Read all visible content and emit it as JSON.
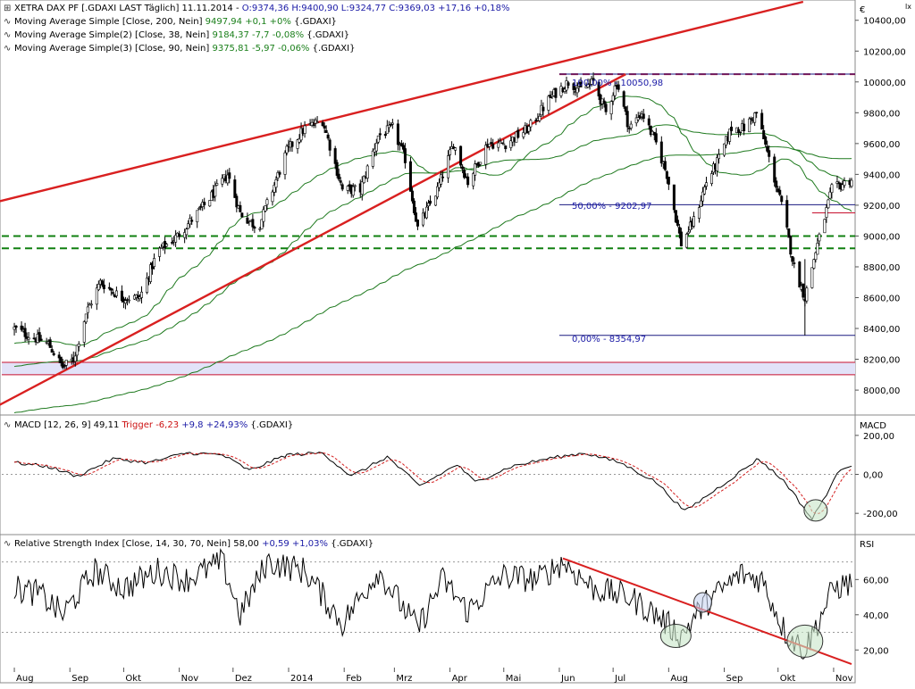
{
  "header": {
    "main_title": "XETRA DAX PF [.GDAXI LAST Täglich] 11.11.2014 -",
    "ohlc": "O:9374,36 H:9400,90 L:9324,77 C:9369,03 +17,16 +0,18%",
    "ma200_label": "Moving Average Simple [Close, 200, Nein]",
    "ma200_value": "9497,94 +0,1 +0%",
    "ma200_sym": "{.GDAXI}",
    "ma38_label": "Moving Average Simple(2) [Close, 38, Nein]",
    "ma38_value": "9184,37 -7,7 -0,08%",
    "ma38_sym": "{.GDAXI}",
    "ma90_label": "Moving Average Simple(3) [Close, 90, Nein]",
    "ma90_value": "9375,81 -5,97 -0,06%",
    "ma90_sym": "{.GDAXI}",
    "currency": "€",
    "corner": "lx"
  },
  "macd_header": {
    "label": "MACD [12, 26, 9]",
    "value": "49,11",
    "trigger_label": "Trigger",
    "trigger_value": "-6,23",
    "change": "+9,8 +24,93%",
    "sym": "{.GDAXI}",
    "axis_title": "MACD"
  },
  "rsi_header": {
    "label": "Relative Strength Index [Close, 14, 30, 70, Nein]",
    "value": "58,00",
    "change": "+0,59 +1,03%",
    "sym": "{.GDAXI}",
    "axis_title": "RSI"
  },
  "fib_labels": {
    "f100": "100,00% - 10050,98",
    "f50": "50,00% - 9202,97",
    "f0": "0,00% - 8354,97"
  },
  "x_axis_labels": [
    "Aug",
    "Sep",
    "Okt",
    "Nov",
    "Dez",
    "2014",
    "Feb",
    "Mrz",
    "Apr",
    "Mai",
    "Jun",
    "Jul",
    "Aug",
    "Sep",
    "Okt",
    "Nov"
  ],
  "price_ticks": [
    "10400,00",
    "10200,00",
    "10000,00",
    "9800,00",
    "9600,00",
    "9400,00",
    "9200,00",
    "9000,00",
    "8800,00",
    "8600,00",
    "8400,00",
    "8200,00",
    "8000,00"
  ],
  "macd_ticks": [
    "200,00",
    "0,00",
    "-200,00"
  ],
  "rsi_ticks": [
    "60,00",
    "40,00",
    "20,00"
  ],
  "colors": {
    "trend": "#d92020",
    "ma": "#1f7a1f",
    "support": "#108010",
    "fib": "#1a1a80",
    "resistance": "#c8102e",
    "band_fill": "#e2e2f8",
    "circle_green": "#c8e6c8",
    "circle_blue": "#c8d4f0"
  },
  "chart_data": [
    {
      "type": "candlestick",
      "title": "XETRA DAX PF [.GDAXI LAST Täglich]",
      "ylabel": "€",
      "ylim": [
        7850,
        10520
      ],
      "x_range": [
        "2013-08",
        "2014-11-11"
      ],
      "last": {
        "date": "11.11.2014",
        "open": 9374.36,
        "high": 9400.9,
        "low": 9324.77,
        "close": 9369.03
      },
      "close_anchor_points": [
        [
          "2013-08-01",
          8400
        ],
        [
          "2013-08-10",
          8350
        ],
        [
          "2013-08-20",
          8300
        ],
        [
          "2013-08-28",
          8150
        ],
        [
          "2013-09-03",
          8200
        ],
        [
          "2013-09-10",
          8500
        ],
        [
          "2013-09-18",
          8700
        ],
        [
          "2013-09-30",
          8600
        ],
        [
          "2013-10-10",
          8600
        ],
        [
          "2013-10-20",
          8900
        ],
        [
          "2013-10-31",
          9000
        ],
        [
          "2013-11-15",
          9200
        ],
        [
          "2013-11-28",
          9400
        ],
        [
          "2013-12-05",
          9150
        ],
        [
          "2013-12-15",
          9050
        ],
        [
          "2013-12-31",
          9550
        ],
        [
          "2014-01-10",
          9700
        ],
        [
          "2014-01-20",
          9750
        ],
        [
          "2014-01-31",
          9300
        ],
        [
          "2014-02-10",
          9300
        ],
        [
          "2014-02-20",
          9650
        ],
        [
          "2014-02-28",
          9700
        ],
        [
          "2014-03-07",
          9500
        ],
        [
          "2014-03-14",
          9050
        ],
        [
          "2014-03-25",
          9300
        ],
        [
          "2014-04-03",
          9600
        ],
        [
          "2014-04-11",
          9350
        ],
        [
          "2014-04-22",
          9600
        ],
        [
          "2014-05-02",
          9600
        ],
        [
          "2014-05-15",
          9700
        ],
        [
          "2014-05-27",
          9900
        ],
        [
          "2014-06-06",
          10000
        ],
        [
          "2014-06-13",
          9950
        ],
        [
          "2014-06-20",
          10000
        ],
        [
          "2014-06-27",
          9800
        ],
        [
          "2014-07-03",
          10000
        ],
        [
          "2014-07-10",
          9700
        ],
        [
          "2014-07-17",
          9800
        ],
        [
          "2014-07-25",
          9600
        ],
        [
          "2014-07-31",
          9400
        ],
        [
          "2014-08-08",
          8950
        ],
        [
          "2014-08-15",
          9100
        ],
        [
          "2014-08-22",
          9350
        ],
        [
          "2014-08-29",
          9500
        ],
        [
          "2014-09-05",
          9700
        ],
        [
          "2014-09-12",
          9700
        ],
        [
          "2014-09-19",
          9800
        ],
        [
          "2014-09-26",
          9500
        ],
        [
          "2014-10-03",
          9200
        ],
        [
          "2014-10-10",
          8800
        ],
        [
          "2014-10-16",
          8600
        ],
        [
          "2014-10-22",
          8900
        ],
        [
          "2014-10-31",
          9300
        ],
        [
          "2014-11-11",
          9369
        ]
      ],
      "moving_averages": [
        {
          "name": "Moving Average Simple [Close, 200, Nein]",
          "last": 9497.94
        },
        {
          "name": "Moving Average Simple(2) [Close, 38, Nein]",
          "last": 9184.37
        },
        {
          "name": "Moving Average Simple(3) [Close, 90, Nein]",
          "last": 9375.81
        }
      ],
      "fibonacci": [
        {
          "level": "100,00%",
          "value": 10050.98
        },
        {
          "level": "50,00%",
          "value": 9202.97
        },
        {
          "level": "0,00%",
          "value": 8354.97
        }
      ],
      "horizontal_lines": [
        9000,
        8920,
        10050,
        9150,
        8100,
        8180
      ],
      "trend_lines": [
        {
          "from": [
            "2013-07-15",
            7850
          ],
          "to": [
            "2014-07-08",
            10050
          ]
        },
        {
          "from": [
            "2013-07-15",
            9200
          ],
          "to": [
            "2014-10-15",
            10520
          ]
        }
      ]
    },
    {
      "type": "line",
      "title": "MACD [12, 26, 9]",
      "ylim": [
        -300,
        300
      ],
      "series": [
        {
          "name": "MACD",
          "last": 49.11
        },
        {
          "name": "Trigger",
          "last": -6.23
        }
      ],
      "macd_anchor_points": [
        [
          "2013-08-01",
          60
        ],
        [
          "2013-08-20",
          40
        ],
        [
          "2013-09-05",
          -10
        ],
        [
          "2013-09-25",
          80
        ],
        [
          "2013-10-15",
          60
        ],
        [
          "2013-11-05",
          110
        ],
        [
          "2013-11-25",
          100
        ],
        [
          "2013-12-10",
          20
        ],
        [
          "2013-12-31",
          100
        ],
        [
          "2014-01-20",
          110
        ],
        [
          "2014-02-05",
          -10
        ],
        [
          "2014-02-25",
          90
        ],
        [
          "2014-03-15",
          -60
        ],
        [
          "2014-04-05",
          50
        ],
        [
          "2014-04-15",
          -40
        ],
        [
          "2014-05-05",
          40
        ],
        [
          "2014-05-25",
          80
        ],
        [
          "2014-06-15",
          110
        ],
        [
          "2014-07-05",
          60
        ],
        [
          "2014-07-25",
          -40
        ],
        [
          "2014-08-10",
          -190
        ],
        [
          "2014-08-30",
          -60
        ],
        [
          "2014-09-20",
          80
        ],
        [
          "2014-10-05",
          -40
        ],
        [
          "2014-10-20",
          -230
        ],
        [
          "2014-11-05",
          30
        ],
        [
          "2014-11-11",
          49
        ]
      ]
    },
    {
      "type": "line",
      "title": "Relative Strength Index [Close, 14, 30, 70, Nein]",
      "ylim": [
        10,
        85
      ],
      "series": [
        {
          "name": "RSI",
          "last": 58.0
        }
      ],
      "rsi_anchor_points": [
        [
          "2013-08-01",
          55
        ],
        [
          "2013-08-15",
          52
        ],
        [
          "2013-08-28",
          40
        ],
        [
          "2013-09-15",
          65
        ],
        [
          "2013-10-01",
          55
        ],
        [
          "2013-10-20",
          65
        ],
        [
          "2013-11-05",
          60
        ],
        [
          "2013-11-25",
          70
        ],
        [
          "2013-12-05",
          40
        ],
        [
          "2013-12-20",
          70
        ],
        [
          "2014-01-10",
          65
        ],
        [
          "2014-01-31",
          35
        ],
        [
          "2014-02-20",
          65
        ],
        [
          "2014-03-14",
          32
        ],
        [
          "2014-03-28",
          60
        ],
        [
          "2014-04-11",
          42
        ],
        [
          "2014-04-30",
          62
        ],
        [
          "2014-05-20",
          60
        ],
        [
          "2014-06-03",
          70
        ],
        [
          "2014-06-20",
          55
        ],
        [
          "2014-07-10",
          50
        ],
        [
          "2014-07-25",
          40
        ],
        [
          "2014-08-08",
          28
        ],
        [
          "2014-08-20",
          45
        ],
        [
          "2014-09-10",
          63
        ],
        [
          "2014-09-22",
          60
        ],
        [
          "2014-10-05",
          30
        ],
        [
          "2014-10-16",
          20
        ],
        [
          "2014-11-01",
          55
        ],
        [
          "2014-11-11",
          58
        ]
      ]
    }
  ]
}
